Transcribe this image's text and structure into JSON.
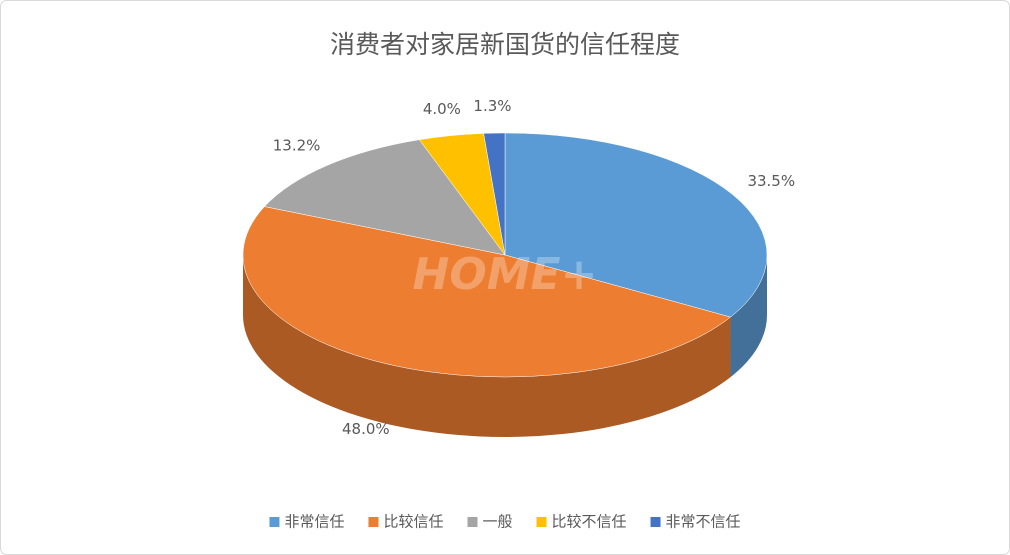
{
  "chart_data": {
    "type": "pie3d",
    "title": "消费者对家居新国货的信任程度",
    "categories": [
      "非常信任",
      "比较信任",
      "一般",
      "比较不信任",
      "非常不信任"
    ],
    "values": [
      33.5,
      48.0,
      13.2,
      4.0,
      1.3
    ],
    "value_labels": [
      "33.5%",
      "48.0%",
      "13.2%",
      "4.0%",
      "1.3%"
    ],
    "colors": [
      "#5b9bd5",
      "#ed7d31",
      "#a5a5a5",
      "#ffc000",
      "#4472c4"
    ],
    "legend": "bottom",
    "watermark": "HOME+"
  }
}
